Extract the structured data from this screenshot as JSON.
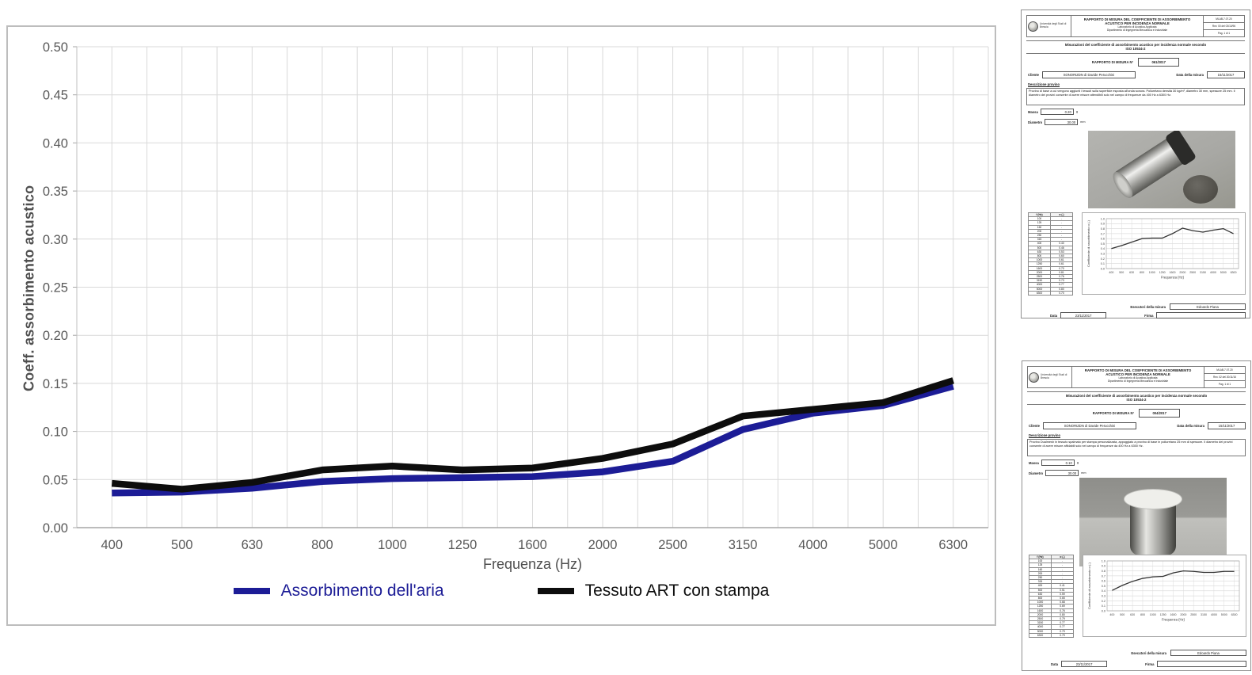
{
  "chart_data": [
    {
      "type": "line",
      "categories": [
        400,
        500,
        630,
        800,
        1000,
        1250,
        1600,
        2000,
        2500,
        3150,
        4000,
        5000,
        6300
      ],
      "series": [
        {
          "name": "Assorbimento dell'aria",
          "color": "#1c1c96",
          "values": [
            0.036,
            0.037,
            0.041,
            0.048,
            0.051,
            0.052,
            0.053,
            0.058,
            0.069,
            0.102,
            0.119,
            0.127,
            0.147
          ]
        },
        {
          "name": "Tessuto ART con stampa",
          "color": "#0d0d0d",
          "values": [
            0.046,
            0.04,
            0.047,
            0.06,
            0.064,
            0.06,
            0.062,
            0.072,
            0.087,
            0.116,
            0.123,
            0.13,
            0.153
          ]
        }
      ],
      "xlabel": "Frequenza (Hz)",
      "ylabel": "Coeff. assorbimento acustico",
      "ylim": [
        0,
        0.5
      ],
      "ytick_step": 0.05,
      "grid": true,
      "legend_position": "bottom",
      "gridline_color": "#d9d9d9",
      "tick_label_color": "#595959"
    },
    {
      "type": "line",
      "categories": [
        400,
        500,
        630,
        800,
        1000,
        1250,
        1600,
        2000,
        2500,
        3150,
        4000,
        5000,
        6300
      ],
      "values": [
        0.4,
        0.46,
        0.53,
        0.6,
        0.61,
        0.61,
        0.7,
        0.81,
        0.76,
        0.73,
        0.77,
        0.8,
        0.7
      ],
      "xlabel": "Frequenza (Hz)",
      "ylabel": "Coefficiente di assorbimento α (-)",
      "ylim": [
        0,
        1
      ],
      "ytick_step": 0.1,
      "grid": true
    },
    {
      "type": "line",
      "categories": [
        400,
        500,
        630,
        800,
        1000,
        1250,
        1600,
        2000,
        2500,
        3150,
        4000,
        5000,
        6300
      ],
      "values": [
        0.41,
        0.51,
        0.59,
        0.65,
        0.68,
        0.69,
        0.76,
        0.8,
        0.79,
        0.77,
        0.77,
        0.79,
        0.79
      ],
      "xlabel": "Frequenza (Hz)",
      "ylabel": "Coefficiente di assorbimento α (-)",
      "ylim": [
        0,
        1
      ],
      "ytick_step": 0.1,
      "grid": true
    }
  ],
  "documents": [
    {
      "header": {
        "university": "Università degli Studi di Brescia",
        "title_line1": "RAPPORTO DI MISURA DEL COEFFICIENTE DI ASSORBIMENTO",
        "title_line2": "ACUSTICO PER INCIDENZA NORMALE",
        "lab": "Laboratorio di Acustica Applicata",
        "department": "Dipartimento di Ingegneria Meccanica e Industriale",
        "doc_code": "MLAB-7.07.20",
        "revision": "Rev. 00 del 03/10/96",
        "page": "Pag. 1 di 1"
      },
      "standard_line1": "Misurazioni del coefficiente di assorbimento acustico per incidenza normale secondo",
      "standard_line2": "ISO 10534-2",
      "report_label": "RAPPORTO DI MISURA N°",
      "report_number": "061/2017",
      "client_label": "Cliente",
      "client": "SONORIZDN di Davide Perucchini",
      "date_label": "Data della misura",
      "measure_date": "15/11/2017",
      "description_label": "Descrizione provino",
      "description": "Provino di base a cui vengono aggiunti i tessuti sulla superficie esposta all'onda sonora. Poliuretano densità 30 kg/m³, diametro 30 mm, spessore 25 mm. Il diametro dei provini consente di avere misure attendibili solo nel campo di frequenze da 400 Hz a 6300 Hz.",
      "mass_label": "Massa",
      "mass": "0.20",
      "mass_unit": "g",
      "diameter_label": "Diametro",
      "diameter": "30.00",
      "diameter_unit": "mm",
      "table": {
        "headers": [
          "f (Hz)",
          "α (-)"
        ],
        "rows": [
          [
            "100",
            "-"
          ],
          [
            "125",
            "-"
          ],
          [
            "160",
            "-"
          ],
          [
            "200",
            "-"
          ],
          [
            "250",
            "-"
          ],
          [
            "315",
            "-"
          ],
          [
            "400",
            "0.40"
          ],
          [
            "500",
            "0.46"
          ],
          [
            "630",
            "0.53"
          ],
          [
            "800",
            "0.60"
          ],
          [
            "1000",
            "0.61"
          ],
          [
            "1250",
            "0.61"
          ],
          [
            "1600",
            "0.70"
          ],
          [
            "2000",
            "0.81"
          ],
          [
            "2500",
            "0.76"
          ],
          [
            "3150",
            "0.73"
          ],
          [
            "4000",
            "0.77"
          ],
          [
            "5000",
            "0.80"
          ],
          [
            "6300",
            "0.70"
          ]
        ]
      },
      "executors_label": "Esecutori della misura",
      "executor": "Edoardo Piana",
      "footer_date_label": "Data",
      "footer_date": "23/11/2017",
      "signature_label": "Firma"
    },
    {
      "header": {
        "university": "Università degli Studi di Brescia",
        "title_line1": "RAPPORTO DI MISURA DEL COEFFICIENTE DI ASSORBIMENTO",
        "title_line2": "ACUSTICO PER INCIDENZA NORMALE",
        "lab": "Laboratorio di Acustica Applicata",
        "department": "Dipartimento di Ingegneria Meccanica e Industriale",
        "doc_code": "MLAB-7.07.20",
        "revision": "Rev. 02 del 20/11/16",
        "page": "Pag. 1 di 1"
      },
      "standard_line1": "Misurazioni del coefficiente di assorbimento acustico per incidenza normale secondo",
      "standard_line2": "ISO 10534-2",
      "report_label": "RAPPORTO DI MISURA N°",
      "report_number": "004/2017",
      "client_label": "Cliente",
      "client": "SONORIZDN di Davide Perucchini",
      "date_label": "Data della misura",
      "measure_date": "15/11/2017",
      "description_label": "Descrizione provino",
      "description": "Provino Dualmesh in tessuto spalmato per stampa personalizzata, appoggiato a provino di base in poliuretano 25 mm di spessore. Il diametro dei provini consente di avere misure affidabili solo nel campo di frequenze da 400 Hz a 6300 Hz.",
      "mass_label": "Massa",
      "mass": "0.10",
      "mass_unit": "g",
      "diameter_label": "Diametro",
      "diameter": "30.00",
      "diameter_unit": "mm",
      "table": {
        "headers": [
          "f (Hz)",
          "α (-)"
        ],
        "rows": [
          [
            "100",
            "-"
          ],
          [
            "125",
            "-"
          ],
          [
            "160",
            "-"
          ],
          [
            "200",
            "-"
          ],
          [
            "250",
            "-"
          ],
          [
            "315",
            "-"
          ],
          [
            "400",
            "0.41"
          ],
          [
            "500",
            "0.51"
          ],
          [
            "630",
            "0.59"
          ],
          [
            "800",
            "0.65"
          ],
          [
            "1000",
            "0.68"
          ],
          [
            "1250",
            "0.69"
          ],
          [
            "1600",
            "0.76"
          ],
          [
            "2000",
            "0.80"
          ],
          [
            "2500",
            "0.79"
          ],
          [
            "3150",
            "0.77"
          ],
          [
            "4000",
            "0.77"
          ],
          [
            "5000",
            "0.79"
          ],
          [
            "6300",
            "0.79"
          ]
        ]
      },
      "executors_label": "Esecutori della misura",
      "executor": "Edoardo Piana",
      "footer_date_label": "Data",
      "footer_date": "23/11/2017",
      "signature_label": "Firma"
    }
  ]
}
